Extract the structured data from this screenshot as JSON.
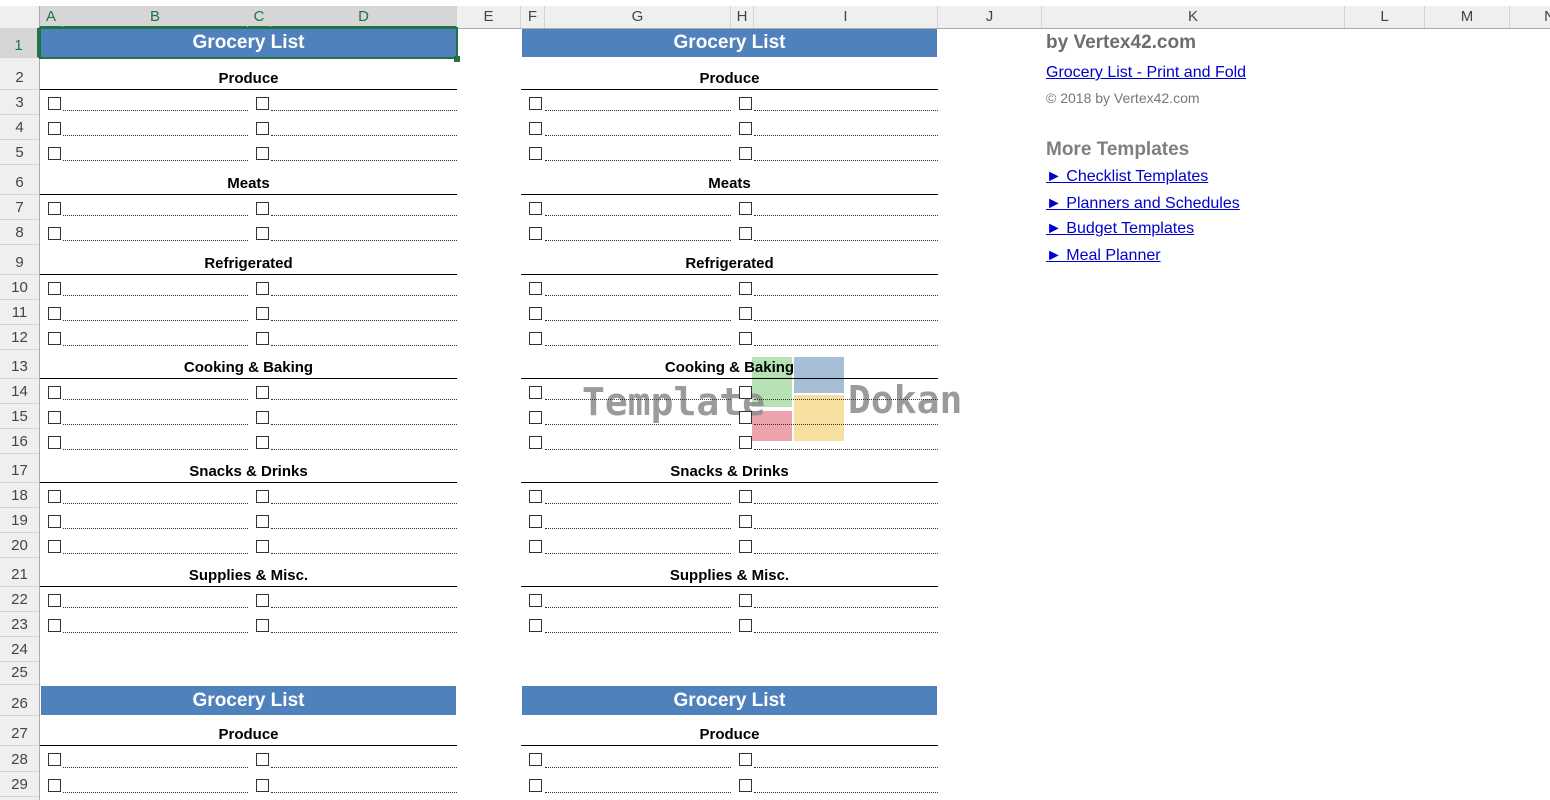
{
  "columns": [
    "A",
    "B",
    "C",
    "D",
    "E",
    "F",
    "G",
    "H",
    "I",
    "J",
    "K",
    "L",
    "M",
    "N"
  ],
  "selected_cell": "A1",
  "lists": [
    {
      "title": "Grocery List",
      "sections": [
        {
          "name": "Produce",
          "rows": 3
        },
        {
          "name": "Meats",
          "rows": 2
        },
        {
          "name": "Refrigerated",
          "rows": 3
        },
        {
          "name": "Cooking & Baking",
          "rows": 3
        },
        {
          "name": "Snacks & Drinks",
          "rows": 3
        },
        {
          "name": "Supplies & Misc.",
          "rows": 2
        }
      ]
    },
    {
      "title": "Grocery List",
      "sections": [
        {
          "name": "Produce",
          "rows": 2
        }
      ]
    }
  ],
  "sidebar": {
    "byline": "by Vertex42.com",
    "main_link": "Grocery List - Print and Fold",
    "copyright": "© 2018 by Vertex42.com",
    "more_heading": "More Templates",
    "links": [
      {
        "icon": "triangle-right-icon",
        "arrow": "►",
        "label": "Checklist Templates"
      },
      {
        "icon": "triangle-right-icon",
        "arrow": "►",
        "label": "Planners and Schedules"
      },
      {
        "icon": "triangle-right-icon",
        "arrow": "►",
        "label": "Budget Templates"
      },
      {
        "icon": "triangle-right-icon",
        "arrow": "►",
        "label": "Meal Planner"
      }
    ]
  },
  "watermark": {
    "left": "Template",
    "right": "Dokan"
  },
  "colors": {
    "title_bg": "#4f81bd",
    "link": "#0000cc",
    "selection": "#217346",
    "muted": "#777777"
  }
}
